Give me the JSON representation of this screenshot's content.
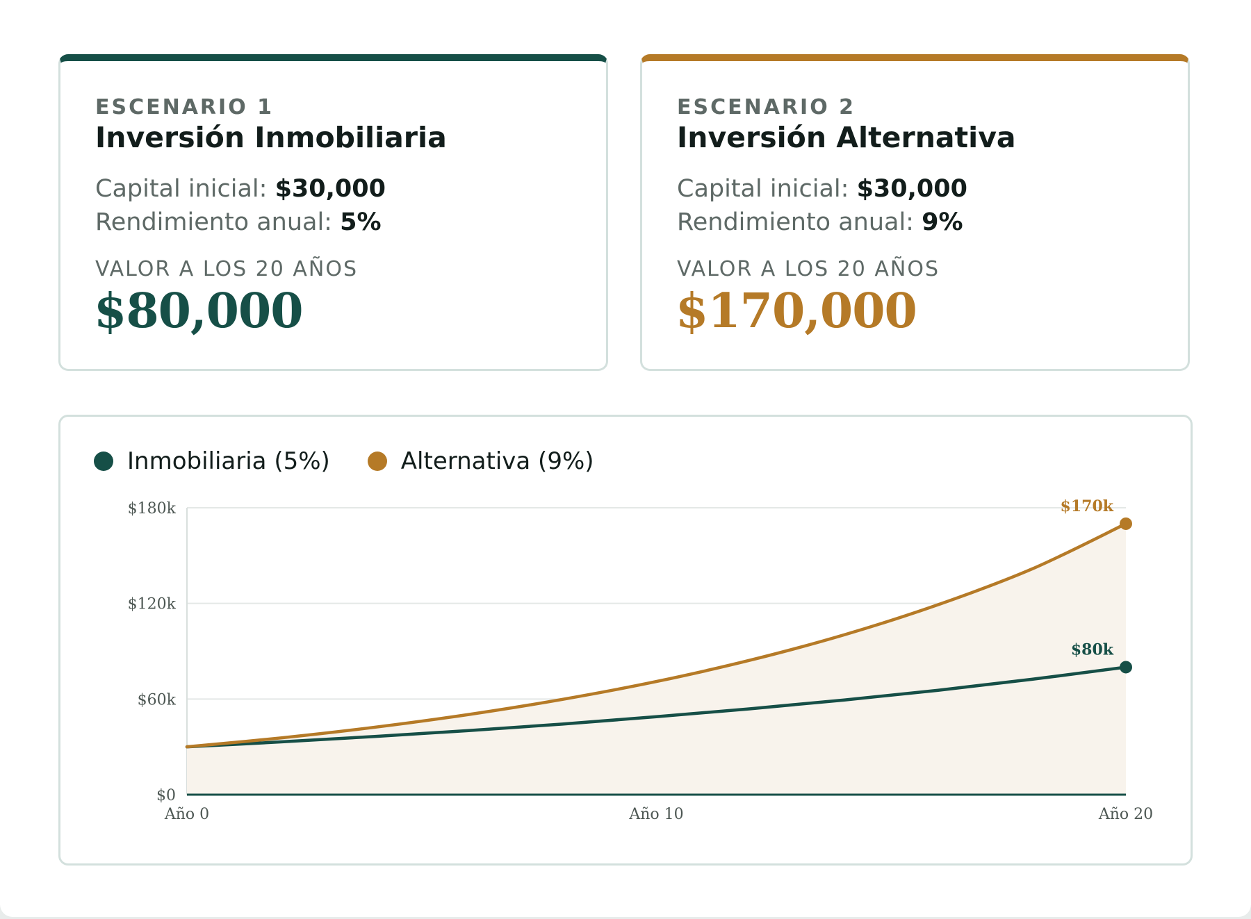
{
  "scenarios": [
    {
      "label": "ESCENARIO 1",
      "title": "Inversión Inmobiliaria",
      "capital_label": "Capital inicial:",
      "capital_value": "$30,000",
      "rate_label": "Rendimiento anual:",
      "rate_value": "5%",
      "value_label": "VALOR A LOS 20 AÑOS",
      "value": "$80,000",
      "color": "#164f47"
    },
    {
      "label": "ESCENARIO 2",
      "title": "Inversión Alternativa",
      "capital_label": "Capital inicial:",
      "capital_value": "$30,000",
      "rate_label": "Rendimiento anual:",
      "rate_value": "9%",
      "value_label": "VALOR A LOS 20 AÑOS",
      "value": "$170,000",
      "color": "#b57a27"
    }
  ],
  "legend": [
    {
      "label": "Inmobiliaria (5%)",
      "color": "#164f47"
    },
    {
      "label": "Alternativa (9%)",
      "color": "#b57a27"
    }
  ],
  "chart_data": {
    "type": "line",
    "x_ticks": [
      0,
      10,
      20
    ],
    "x_tick_labels": [
      "Año 0",
      "Año 10",
      "Año 20"
    ],
    "y_ticks": [
      0,
      60000,
      120000,
      180000
    ],
    "y_tick_labels": [
      "$0",
      "$60k",
      "$120k",
      "$180k"
    ],
    "xlim": [
      0,
      20
    ],
    "ylim": [
      0,
      180000
    ],
    "grid": true,
    "fill_between_series": true,
    "fill_color": "#f8f3ec",
    "series": [
      {
        "name": "Inmobiliaria (5%)",
        "color": "#164f47",
        "x": [
          0,
          2,
          4,
          6,
          8,
          10,
          12,
          14,
          16,
          18,
          20
        ],
        "y": [
          30000,
          33100,
          36500,
          40200,
          44300,
          48900,
          53900,
          59400,
          65500,
          72400,
          80000
        ],
        "end_label": "$80k"
      },
      {
        "name": "Alternativa (9%)",
        "color": "#b57a27",
        "x": [
          0,
          2,
          4,
          6,
          8,
          10,
          12,
          14,
          16,
          18,
          20
        ],
        "y": [
          30000,
          35600,
          42300,
          50300,
          59800,
          71000,
          84400,
          100300,
          119200,
          141600,
          170000
        ],
        "end_label": "$170k"
      }
    ]
  }
}
